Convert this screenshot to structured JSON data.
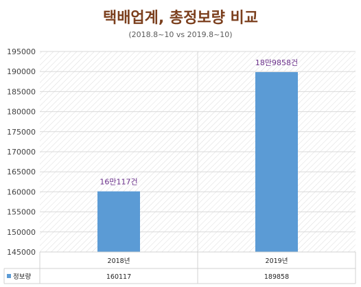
{
  "title": "택배업계, 총정보량 비교",
  "subtitle": "(2018.8~10 vs  2019.8~10)",
  "colors": {
    "bar": "#5b9bd5",
    "title": "#7b3f1d",
    "data_label": "#6a2f8a",
    "grid": "#d9d9d9"
  },
  "chart_data": {
    "type": "bar",
    "title": "택배업계, 총정보량 비교",
    "subtitle": "(2018.8~10 vs  2019.8~10)",
    "categories": [
      "2018년",
      "2019년"
    ],
    "series": [
      {
        "name": "정보량",
        "values": [
          160117,
          189858
        ],
        "data_labels": [
          "16만117건",
          "18만9858건"
        ]
      }
    ],
    "ylim": [
      145000,
      195000
    ],
    "yticks": [
      145000,
      150000,
      155000,
      160000,
      165000,
      170000,
      175000,
      180000,
      185000,
      190000,
      195000
    ],
    "grid": true,
    "legend": "bottom-left data table",
    "data_table": {
      "series_label": "정보량",
      "values": [
        "160117",
        "189858"
      ]
    }
  }
}
